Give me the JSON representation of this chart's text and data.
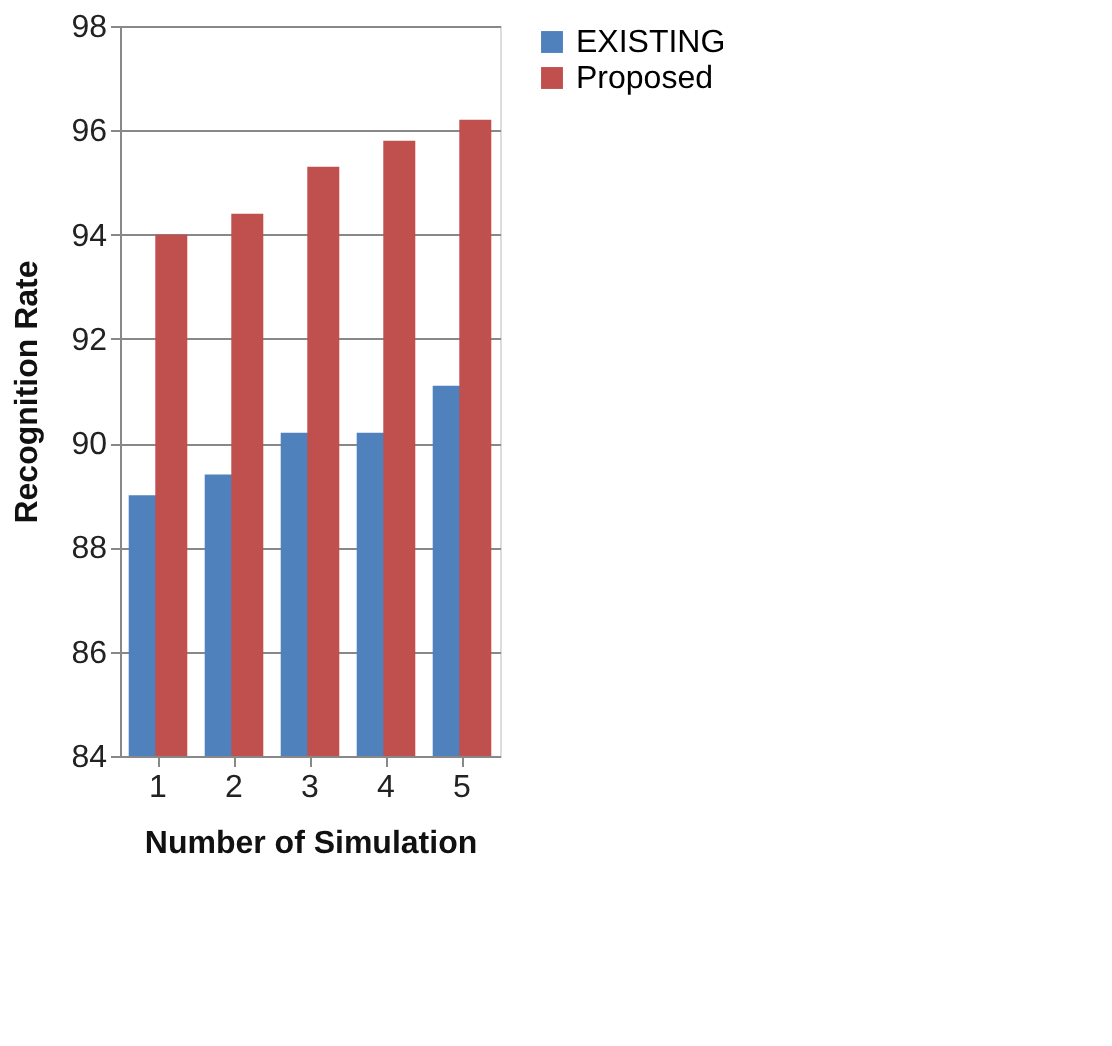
{
  "chart_data": {
    "type": "bar",
    "xlabel": "Number of Simulation",
    "ylabel": "Recognition Rate",
    "categories": [
      "1",
      "2",
      "3",
      "4",
      "5"
    ],
    "series": [
      {
        "name": "EXISTING",
        "color": "#4f81bd",
        "values": [
          89.0,
          89.4,
          90.2,
          90.2,
          91.1
        ]
      },
      {
        "name": "Proposed",
        "color": "#c0504d",
        "values": [
          94.0,
          94.4,
          95.3,
          95.8,
          96.2
        ]
      }
    ],
    "ylim": [
      84,
      98
    ],
    "yticks": [
      84,
      86,
      88,
      90,
      92,
      94,
      96,
      98
    ],
    "grid": "y",
    "legend": "right"
  }
}
